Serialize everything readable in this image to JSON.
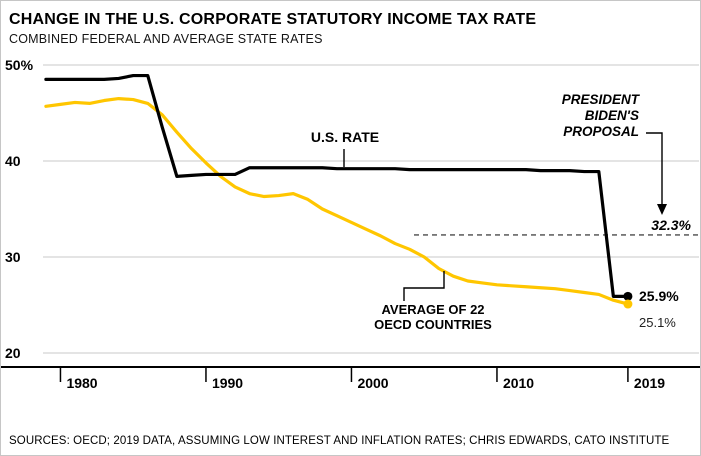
{
  "header": {
    "title": "CHANGE IN THE U.S. CORPORATE STATUTORY INCOME TAX RATE",
    "subtitle": "COMBINED FEDERAL AND AVERAGE STATE RATES"
  },
  "footer": {
    "sources": "SOURCES: OECD; 2019 DATA, ASSUMING LOW INTEREST AND INFLATION RATES; CHRIS EDWARDS, CATO INSTITUTE"
  },
  "colors": {
    "us_line": "#000000",
    "oecd_line": "#ffc600",
    "grid": "#c9c9c9",
    "dashed": "#4a4a4a"
  },
  "chart_data": {
    "type": "line",
    "title": "CHANGE IN THE U.S. CORPORATE STATUTORY INCOME TAX RATE",
    "subtitle": "COMBINED FEDERAL AND AVERAGE STATE RATES",
    "xlabel": "",
    "ylabel": "",
    "y_unit": "%",
    "ylim": [
      20,
      50
    ],
    "grid": true,
    "x": [
      1979,
      1980,
      1981,
      1982,
      1983,
      1984,
      1985,
      1986,
      1987,
      1988,
      1989,
      1990,
      1991,
      1992,
      1993,
      1994,
      1995,
      1996,
      1997,
      1998,
      1999,
      2000,
      2001,
      2002,
      2003,
      2004,
      2005,
      2006,
      2007,
      2008,
      2009,
      2010,
      2011,
      2012,
      2013,
      2014,
      2015,
      2016,
      2017,
      2018,
      2019
    ],
    "series": [
      {
        "name": "U.S. RATE",
        "color": "#000000",
        "end_label": "25.9%",
        "values": [
          48.5,
          48.5,
          48.5,
          48.5,
          48.5,
          48.6,
          48.9,
          48.9,
          43.5,
          38.4,
          38.5,
          38.6,
          38.6,
          38.6,
          39.3,
          39.3,
          39.3,
          39.3,
          39.3,
          39.3,
          39.2,
          39.2,
          39.2,
          39.2,
          39.2,
          39.1,
          39.1,
          39.1,
          39.1,
          39.1,
          39.1,
          39.1,
          39.1,
          39.1,
          39.0,
          39.0,
          39.0,
          38.9,
          38.9,
          25.9,
          25.9
        ]
      },
      {
        "name": "AVERAGE OF 22 OECD COUNTRIES",
        "color": "#ffc600",
        "end_label": "25.1%",
        "values": [
          45.7,
          45.9,
          46.1,
          46.0,
          46.3,
          46.5,
          46.4,
          46.0,
          44.8,
          43.0,
          41.3,
          39.8,
          38.4,
          37.3,
          36.6,
          36.3,
          36.4,
          36.6,
          36.0,
          35.0,
          34.3,
          33.6,
          32.9,
          32.2,
          31.4,
          30.8,
          30.0,
          28.8,
          28.0,
          27.5,
          27.3,
          27.1,
          27.0,
          26.9,
          26.8,
          26.7,
          26.5,
          26.3,
          26.1,
          25.5,
          25.1
        ]
      }
    ],
    "yticks": [
      {
        "v": 50,
        "label": "50%"
      },
      {
        "v": 40,
        "label": "40"
      },
      {
        "v": 30,
        "label": "30"
      },
      {
        "v": 20,
        "label": "20"
      }
    ],
    "xticks": [
      {
        "v": 1980,
        "label": "1980"
      },
      {
        "v": 1990,
        "label": "1990"
      },
      {
        "v": 2000,
        "label": "2000"
      },
      {
        "v": 2010,
        "label": "2010"
      },
      {
        "v": 2019,
        "label": "2019"
      }
    ],
    "annotations": {
      "us_rate": "U.S. RATE",
      "oecd": "AVERAGE OF 22\nOECD COUNTRIES",
      "proposal_label": "PRESIDENT\nBIDEN'S\nPROPOSAL",
      "proposal_value": 32.3,
      "proposal_value_label": "32.3%",
      "us_end_label": "25.9%",
      "oecd_end_label": "25.1%"
    }
  }
}
